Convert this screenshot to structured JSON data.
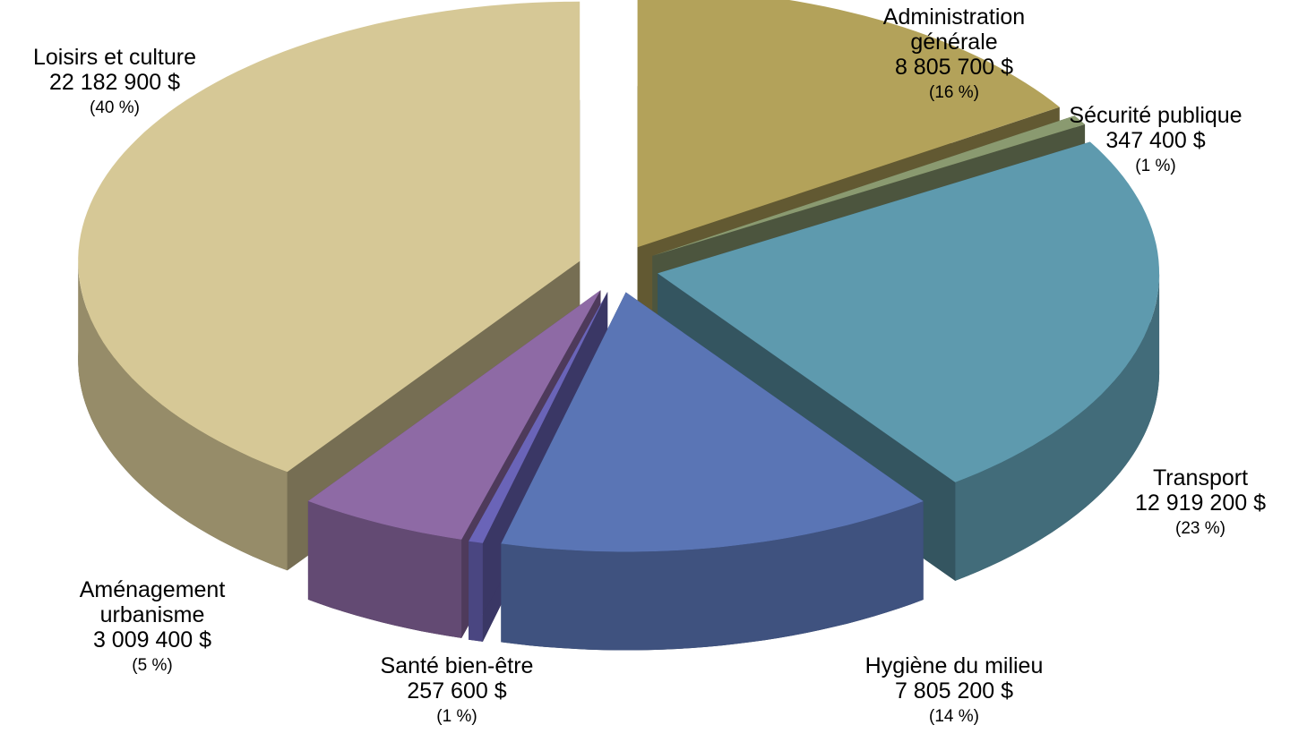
{
  "chart_data": {
    "type": "pie",
    "categories": [
      "Administration générale",
      "Sécurité publique",
      "Transport",
      "Hygiène du milieu",
      "Santé bien-être",
      "Aménagement urbanisme",
      "Loisirs et culture"
    ],
    "values": [
      8805700,
      347400,
      12919200,
      7805200,
      257600,
      3009400,
      22182900
    ],
    "value_labels": [
      "8 805 700  $",
      "347 400  $",
      "12 919 200  $",
      "7 805 200  $",
      "257 600  $",
      "3 009 400  $",
      "22 182 900  $"
    ],
    "percentages": [
      16,
      1,
      23,
      14,
      1,
      5,
      40
    ],
    "percentage_labels": [
      "(16 %)",
      "(1 %)",
      "(23 %)",
      "(14 %)",
      "(1 %)",
      "(5 %)",
      "(40 %)"
    ],
    "colors": [
      "#b3a25a",
      "#8a9a70",
      "#5e9aae",
      "#5a75b5",
      "#6a64b8",
      "#8e6aa5",
      "#d6c896"
    ]
  }
}
